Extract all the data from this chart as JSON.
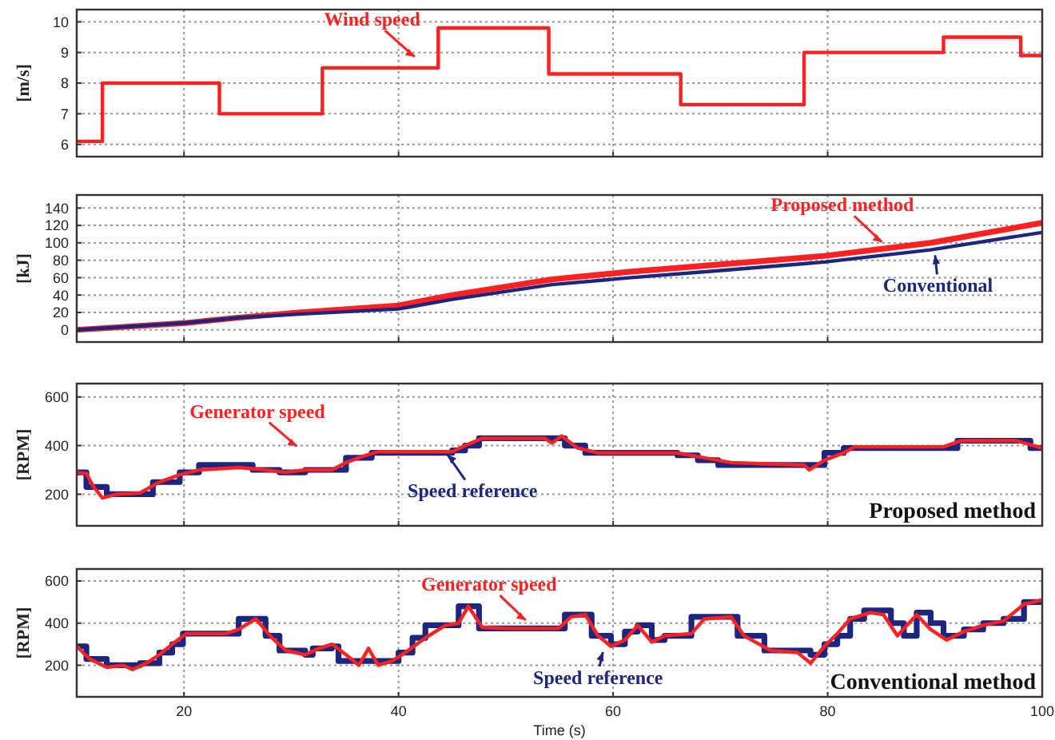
{
  "chart_data": [
    {
      "type": "step",
      "ylabel": "[m/s]",
      "x": [
        10,
        12.4,
        23.3,
        32.9,
        43.7,
        54.0,
        66.3,
        77.8,
        90.8,
        98.0,
        100
      ],
      "series": [
        {
          "name": "Wind speed",
          "color": "#ff2020",
          "values": [
            6.1,
            8,
            7,
            8.5,
            9.8,
            8.3,
            7.3,
            9,
            9.5,
            8.9,
            8.9
          ]
        }
      ],
      "xlim": [
        10,
        100
      ],
      "xticks": [
        20,
        40,
        60,
        80,
        100
      ],
      "ylim": [
        5.6,
        10.4
      ],
      "yticks": [
        6,
        7,
        8,
        9,
        10
      ],
      "grid": true,
      "tick_labels": "y"
    },
    {
      "type": "line",
      "ylabel": "[kJ]",
      "x": [
        10,
        20.2,
        25.1,
        30.7,
        40,
        45,
        54.3,
        61.7,
        69.8,
        79.7,
        89.6,
        100
      ],
      "series": [
        {
          "name": "Proposed method",
          "color": "#ff2020",
          "values": [
            0,
            8,
            14,
            20,
            28,
            40,
            58,
            67,
            75,
            85,
            100,
            123
          ]
        },
        {
          "name": "Conventional",
          "color": "#1c2580",
          "values": [
            0,
            8,
            14,
            18,
            24,
            35,
            52,
            60,
            68,
            78,
            92,
            112
          ]
        }
      ],
      "xlim": [
        10,
        100
      ],
      "xticks": [
        20,
        40,
        60,
        80,
        100
      ],
      "ylim": [
        -14,
        155
      ],
      "yticks": [
        0,
        20,
        40,
        60,
        80,
        100,
        120,
        140
      ],
      "grid": true,
      "tick_labels": "y"
    },
    {
      "type": "line",
      "ylabel": "[RPM]",
      "annotations": [
        "Proposed method"
      ],
      "series": [
        {
          "name": "Speed reference",
          "type": "step",
          "color": "#1c2580",
          "x": [
            10,
            10.9,
            12.8,
            17.1,
            19.6,
            21.4,
            26.4,
            28.9,
            31.3,
            35.1,
            37.5,
            45.0,
            46.2,
            47.5,
            53.6,
            55.5,
            57.4,
            66.0,
            67.9,
            69.8,
            77.8,
            79.7,
            81.5,
            92.1,
            97.6,
            98.9,
            100
          ],
          "values": [
            290,
            230,
            200,
            250,
            290,
            320,
            300,
            290,
            300,
            350,
            370,
            380,
            400,
            430,
            430,
            400,
            370,
            360,
            340,
            320,
            320,
            370,
            390,
            420,
            420,
            390,
            390
          ]
        },
        {
          "name": "Generator speed",
          "type": "line",
          "color": "#ff2020",
          "x": [
            10,
            10.9,
            11.5,
            12.4,
            13.7,
            15.9,
            17.7,
            19.6,
            21.4,
            25.1,
            26.4,
            27.6,
            29.5,
            31.3,
            33.8,
            35.1,
            36.6,
            38.1,
            45.0,
            46.2,
            47.8,
            53.6,
            54.3,
            55.2,
            56.7,
            58.6,
            66.0,
            68.5,
            71.0,
            77.8,
            78.3,
            79.7,
            81.5,
            82.5,
            90.8,
            92.4,
            97.6,
            100
          ],
          "values": [
            290,
            285,
            235,
            185,
            200,
            205,
            250,
            280,
            300,
            310,
            305,
            300,
            290,
            300,
            300,
            330,
            355,
            375,
            375,
            400,
            430,
            430,
            410,
            440,
            390,
            370,
            370,
            350,
            330,
            320,
            300,
            340,
            370,
            395,
            395,
            420,
            420,
            390
          ]
        }
      ],
      "xlim": [
        10,
        100
      ],
      "xticks": [
        20,
        40,
        60,
        80,
        100
      ],
      "ylim": [
        70,
        655
      ],
      "yticks": [
        200,
        400,
        600
      ],
      "grid": true,
      "tick_labels": "y"
    },
    {
      "type": "line",
      "ylabel": "[RPM]",
      "xlabel": "Time (s)",
      "annotations": [
        "Conventional method"
      ],
      "series": [
        {
          "name": "Speed reference",
          "type": "step",
          "color": "#1c2580",
          "x": [
            10,
            10.9,
            12.8,
            15.9,
            17.7,
            18.9,
            19.9,
            25.1,
            27.6,
            28.9,
            31.3,
            32.0,
            33.8,
            34.4,
            40.0,
            41.3,
            42.5,
            45.6,
            47.5,
            55.5,
            58.0,
            59.8,
            61.1,
            62.3,
            63.6,
            64.8,
            67.3,
            71.6,
            74.1,
            78.4,
            79.7,
            80.9,
            82.1,
            83.4,
            85.9,
            87.1,
            88.3,
            89.6,
            90.8,
            92.7,
            94.5,
            96.4,
            98.3,
            100
          ],
          "values": [
            290,
            230,
            200,
            210,
            260,
            300,
            350,
            420,
            340,
            270,
            250,
            280,
            290,
            220,
            260,
            330,
            390,
            480,
            375,
            440,
            340,
            300,
            360,
            390,
            320,
            340,
            430,
            340,
            270,
            250,
            300,
            340,
            420,
            460,
            400,
            340,
            450,
            400,
            340,
            370,
            400,
            420,
            500,
            500
          ]
        },
        {
          "name": "Generator speed",
          "type": "line",
          "color": "#ff2020",
          "x": [
            10,
            11.2,
            12.8,
            14.3,
            15.2,
            16.5,
            17.7,
            18.9,
            20.2,
            23.9,
            25.1,
            26.7,
            28.2,
            29.5,
            31.3,
            32.6,
            33.8,
            35.1,
            36.3,
            37.2,
            38.1,
            39.4,
            40.6,
            42.5,
            44.4,
            45.6,
            46.5,
            47.8,
            49.9,
            54.9,
            56.1,
            57.4,
            58.6,
            59.8,
            61.1,
            62.3,
            63.6,
            64.8,
            67.3,
            68.5,
            71.0,
            72.2,
            74.7,
            77.2,
            78.4,
            79.7,
            80.9,
            82.1,
            84.0,
            85.2,
            86.5,
            88.3,
            89.6,
            91.1,
            92.7,
            94.5,
            96.4,
            98.3,
            100
          ],
          "values": [
            290,
            230,
            190,
            200,
            180,
            210,
            250,
            300,
            350,
            350,
            370,
            420,
            330,
            270,
            250,
            280,
            300,
            250,
            200,
            280,
            200,
            220,
            260,
            330,
            390,
            400,
            480,
            380,
            375,
            375,
            430,
            440,
            340,
            290,
            320,
            390,
            310,
            340,
            350,
            420,
            430,
            340,
            270,
            260,
            210,
            290,
            350,
            420,
            450,
            440,
            340,
            440,
            370,
            320,
            360,
            390,
            410,
            490,
            510
          ]
        }
      ],
      "xlim": [
        10,
        100
      ],
      "xticks": [
        20,
        40,
        60,
        80,
        100
      ],
      "ylim": [
        50,
        657
      ],
      "yticks": [
        200,
        400,
        600
      ],
      "grid": true
    }
  ]
}
